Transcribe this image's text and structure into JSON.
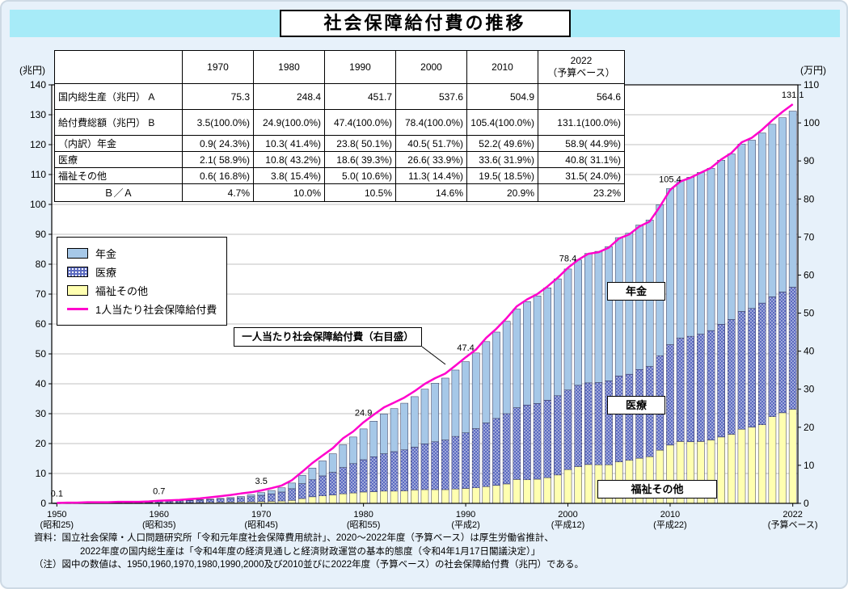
{
  "page": {
    "title": "社会保障給付費の推移",
    "unit_left": "(兆円)",
    "unit_right": "(万円)"
  },
  "table": {
    "col_headers": [
      "",
      "1970",
      "1980",
      "1990",
      "2000",
      "2010",
      "2022\n（予算ベース）"
    ],
    "rows": [
      {
        "label": "国内総生産（兆円） A",
        "values": [
          "75.3",
          "248.4",
          "451.7",
          "537.6",
          "504.9",
          "564.6"
        ]
      },
      {
        "label": "給付費総額（兆円） B",
        "values": [
          "3.5(100.0%)",
          "24.9(100.0%)",
          "47.4(100.0%)",
          "78.4(100.0%)",
          "105.4(100.0%)",
          "131.1(100.0%)"
        ]
      },
      {
        "label": "（内訳）年金",
        "values": [
          "0.9( 24.3%)",
          "10.3( 41.4%)",
          "23.8( 50.1%)",
          "40.5( 51.7%)",
          "52.2( 49.6%)",
          "58.9( 44.9%)"
        ]
      },
      {
        "label": "医療",
        "values": [
          "2.1( 58.9%)",
          "10.8( 43.2%)",
          "18.6( 39.3%)",
          "26.6( 33.9%)",
          "33.6( 31.9%)",
          "40.8( 31.1%)"
        ]
      },
      {
        "label": "福祉その他",
        "values": [
          "0.6( 16.8%)",
          "3.8( 15.4%)",
          "5.0( 10.6%)",
          "11.3( 14.4%)",
          "19.5( 18.5%)",
          "31.5( 24.0%)"
        ]
      },
      {
        "label": "Ｂ／Ａ",
        "values": [
          "4.7%",
          "10.0%",
          "10.5%",
          "14.6%",
          "20.9%",
          "23.2%"
        ]
      }
    ]
  },
  "legend": {
    "items": [
      {
        "label": "年金",
        "swatch": "pension"
      },
      {
        "label": "医療",
        "swatch": "medical"
      },
      {
        "label": "福祉その他",
        "swatch": "welfare"
      },
      {
        "label": "1人当たり社会保障給付費",
        "swatch": "line"
      }
    ]
  },
  "plot_labels": {
    "pension": "年金",
    "medical": "医療",
    "welfare": "福祉その他",
    "line_annotation": "一人当たり社会保障給付費（右目盛）"
  },
  "notes": [
    "資料：国立社会保障・人口問題研究所「令和元年度社会保障費用統計」、2020～2022年度（予算ベース）は厚生労働省推計、",
    "2022年度の国内総生産は「令和4年度の経済見通しと経済財政運営の基本的態度（令和4年1月17日閣議決定）」",
    "（注）図中の数値は、1950,1960,1970,1980,1990,2000及び2010並びに2022年度（予算ベース）の社会保障給付費（兆円）である。"
  ],
  "chart_data": {
    "type": "bar",
    "subtype": "stacked-bar-with-line",
    "x_start": 1950,
    "x_end": 2022,
    "left_axis": {
      "unit": "(兆円)",
      "min": 0,
      "max": 140,
      "step": 10
    },
    "right_axis": {
      "unit": "(万円)",
      "min": 0,
      "max": 110,
      "step": 10
    },
    "x_tick_labels": [
      {
        "year": 1950,
        "line1": "1950",
        "line2": "(昭和25)"
      },
      {
        "year": 1960,
        "line1": "1960",
        "line2": "(昭和35)"
      },
      {
        "year": 1970,
        "line1": "1970",
        "line2": "(昭和45)"
      },
      {
        "year": 1980,
        "line1": "1980",
        "line2": "(昭和55)"
      },
      {
        "year": 1990,
        "line1": "1990",
        "line2": "(平成2)"
      },
      {
        "year": 2000,
        "line1": "2000",
        "line2": "(平成12)"
      },
      {
        "year": 2010,
        "line1": "2010",
        "line2": "(平成22)"
      },
      {
        "year": 2022,
        "line1": "2022",
        "line2": "(予算ベース)"
      }
    ],
    "series": [
      {
        "key": "pension",
        "name": "年金",
        "color": "#a6c8e8",
        "values": [
          0.01,
          0.01,
          0.02,
          0.02,
          0.02,
          0.03,
          0.03,
          0.03,
          0.04,
          0.04,
          0.05,
          0.06,
          0.08,
          0.1,
          0.14,
          0.18,
          0.24,
          0.32,
          0.45,
          0.65,
          0.9,
          1.1,
          1.4,
          1.9,
          2.8,
          3.9,
          5.0,
          6.2,
          7.6,
          8.9,
          10.3,
          11.9,
          13.3,
          14.4,
          15.6,
          16.9,
          18.3,
          19.6,
          20.7,
          22.2,
          23.8,
          25.3,
          27.2,
          28.9,
          30.9,
          33.0,
          34.6,
          36.0,
          37.6,
          39.1,
          40.5,
          41.9,
          43.3,
          43.9,
          44.9,
          46.3,
          47.2,
          48.3,
          49.0,
          50.5,
          52.2,
          52.8,
          53.2,
          54.1,
          54.3,
          54.9,
          55.4,
          56.0,
          56.3,
          56.9,
          57.7,
          58.3,
          58.9
        ]
      },
      {
        "key": "medical",
        "name": "医療",
        "color": "#5b6ac0",
        "pattern": "dots",
        "values": [
          0.08,
          0.09,
          0.11,
          0.13,
          0.14,
          0.15,
          0.17,
          0.2,
          0.23,
          0.27,
          0.45,
          0.5,
          0.57,
          0.7,
          0.8,
          0.9,
          1.05,
          1.2,
          1.4,
          1.7,
          2.1,
          2.5,
          3.0,
          3.9,
          5.0,
          5.7,
          6.7,
          7.6,
          8.8,
          9.8,
          10.8,
          11.7,
          12.5,
          13.2,
          13.7,
          14.3,
          15.3,
          16.0,
          16.6,
          17.6,
          18.6,
          19.8,
          21.3,
          22.4,
          23.5,
          24.0,
          25.0,
          25.3,
          25.9,
          26.5,
          26.6,
          27.2,
          27.3,
          27.5,
          28.1,
          28.7,
          28.8,
          29.7,
          30.2,
          31.6,
          33.6,
          34.6,
          35.3,
          35.9,
          36.6,
          37.7,
          38.4,
          39.4,
          39.7,
          40.7,
          40.1,
          40.4,
          40.8
        ]
      },
      {
        "key": "welfare",
        "name": "福祉その他",
        "color": "#ffffb0",
        "values": [
          0.04,
          0.05,
          0.05,
          0.06,
          0.08,
          0.09,
          0.1,
          0.11,
          0.12,
          0.13,
          0.2,
          0.22,
          0.24,
          0.27,
          0.3,
          0.35,
          0.38,
          0.42,
          0.46,
          0.52,
          0.6,
          0.7,
          0.8,
          1.0,
          1.6,
          2.2,
          2.5,
          2.8,
          3.2,
          3.5,
          3.8,
          3.9,
          4.1,
          4.1,
          4.2,
          4.5,
          4.6,
          4.6,
          4.6,
          4.8,
          5.0,
          5.2,
          5.6,
          6.0,
          6.5,
          8.0,
          7.9,
          8.1,
          8.6,
          9.5,
          11.3,
          12.3,
          13.0,
          12.9,
          12.9,
          13.9,
          14.4,
          15.1,
          15.6,
          17.8,
          19.5,
          20.7,
          20.6,
          20.7,
          21.2,
          22.2,
          23.1,
          24.8,
          25.5,
          26.3,
          29.0,
          30.3,
          31.5
        ]
      }
    ],
    "line": {
      "name": "1人当たり社会保障給付費",
      "color": "#ff00cc",
      "axis": "right",
      "values": [
        0.1,
        0.2,
        0.2,
        0.3,
        0.3,
        0.3,
        0.4,
        0.4,
        0.4,
        0.5,
        0.7,
        0.8,
        0.9,
        1.1,
        1.3,
        1.6,
        1.9,
        2.2,
        2.6,
        2.9,
        3.4,
        4.0,
        4.7,
        6.1,
        8.3,
        10.6,
        12.6,
        14.5,
        17.1,
        18.9,
        21.3,
        23.3,
        25.2,
        26.5,
        27.8,
        29.5,
        31.4,
        32.9,
        34.1,
        36.2,
        38.4,
        40.4,
        43.5,
        45.9,
        48.7,
        51.8,
        53.6,
        55.0,
        57.0,
        59.3,
        61.9,
        64.0,
        65.6,
        66.0,
        67.2,
        69.6,
        70.7,
        72.8,
        74.1,
        78.0,
        82.4,
        84.6,
        85.6,
        86.9,
        88.2,
        90.4,
        92.1,
        94.9,
        96.1,
        98.2,
        100.7,
        102.9,
        104.9
      ]
    },
    "annotations": [
      {
        "year": 1950,
        "label": "0.1"
      },
      {
        "year": 1960,
        "label": "0.7"
      },
      {
        "year": 1970,
        "label": "3.5"
      },
      {
        "year": 1980,
        "label": "24.9"
      },
      {
        "year": 1990,
        "label": "47.4"
      },
      {
        "year": 2000,
        "label": "78.4"
      },
      {
        "year": 2010,
        "label": "105.4"
      },
      {
        "year": 2022,
        "label": "131.1"
      }
    ],
    "grid": true,
    "legend_position": "upper-left-inside"
  }
}
